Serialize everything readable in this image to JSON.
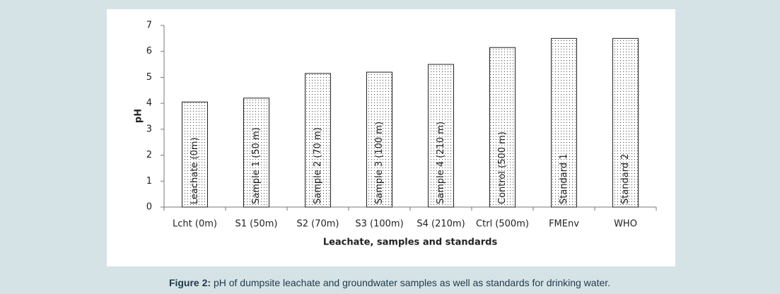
{
  "chart_data": {
    "type": "bar",
    "categories": [
      "Lcht (0m)",
      "S1 (50m)",
      "S2 (70m)",
      "S3 (100m)",
      "S4 (210m)",
      "Ctrl (500m)",
      "FMEnv",
      "WHO"
    ],
    "values": [
      4.05,
      4.2,
      5.15,
      5.2,
      5.5,
      6.15,
      6.5,
      6.5
    ],
    "bar_labels": [
      "Leachate (0m)",
      "Sample 1 (50 m)",
      "Sample 2 (70 m)",
      "Sample 3 (100 m)",
      "Sample 4 (210 m)",
      "Control (500 m)",
      "Standard 1",
      "Standard 2"
    ],
    "y_label": "pH",
    "x_label": "Leachate, samples and standards",
    "ylim": [
      0,
      7
    ],
    "yticks": [
      0,
      1,
      2,
      3,
      4,
      5,
      6,
      7
    ]
  },
  "caption": {
    "label": "Figure 2:",
    "text": "pH of dumpsite leachate and groundwater samples as well as standards for drinking water."
  }
}
